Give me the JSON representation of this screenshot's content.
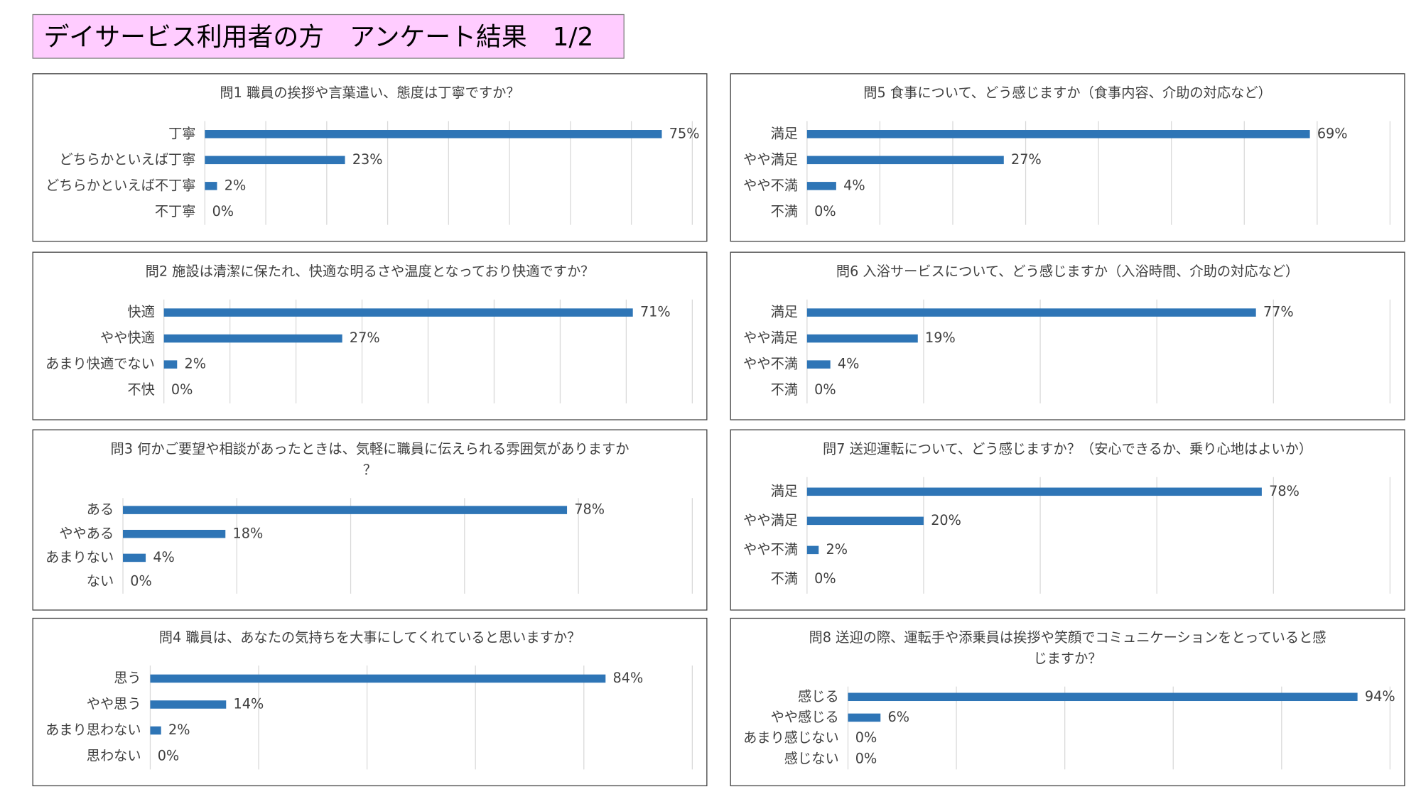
{
  "page_title": "デイサービス利用者の方　アンケート結果　1/2",
  "chart_data": [
    {
      "type": "bar",
      "orientation": "horizontal",
      "title": "問1 職員の挨拶や言葉遣い、態度は丁寧ですか？",
      "categories": [
        "丁寧",
        "どちらかといえば丁寧",
        "どちらかといえば不丁寧",
        "不丁寧"
      ],
      "values": [
        75,
        23,
        2,
        0
      ],
      "value_labels": [
        "75%",
        "23%",
        "2%",
        "0%"
      ],
      "color": "#2e75b6",
      "xlim": [
        0,
        80
      ],
      "xticks": [
        0,
        10,
        20,
        30,
        40,
        50,
        60,
        70,
        80
      ],
      "grid": true
    },
    {
      "type": "bar",
      "orientation": "horizontal",
      "title": "問2 施設は清潔に保たれ、快適な明るさや温度となっており快適ですか？",
      "categories": [
        "快適",
        "やや快適",
        "あまり快適でない",
        "不快"
      ],
      "values": [
        71,
        27,
        2,
        0
      ],
      "value_labels": [
        "71%",
        "27%",
        "2%",
        "0%"
      ],
      "color": "#2e75b6",
      "xlim": [
        0,
        80
      ],
      "xticks": [
        0,
        10,
        20,
        30,
        40,
        50,
        60,
        70,
        80
      ],
      "grid": true
    },
    {
      "type": "bar",
      "orientation": "horizontal",
      "title": "問3 何かご要望や相談があったときは、気軽に職員に伝えられる雰囲気がありますか？",
      "categories": [
        "ある",
        "ややある",
        "あまりない",
        "ない"
      ],
      "values": [
        78,
        18,
        4,
        0
      ],
      "value_labels": [
        "78%",
        "18%",
        "4%",
        "0%"
      ],
      "color": "#2e75b6",
      "xlim": [
        0,
        100
      ],
      "xticks": [
        0,
        20,
        40,
        60,
        80,
        100
      ],
      "grid": true
    },
    {
      "type": "bar",
      "orientation": "horizontal",
      "title": "問4 職員は、あなたの気持ちを大事にしてくれていると思いますか？",
      "categories": [
        "思う",
        "やや思う",
        "あまり思わない",
        "思わない"
      ],
      "values": [
        84,
        14,
        2,
        0
      ],
      "value_labels": [
        "84%",
        "14%",
        "2%",
        "0%"
      ],
      "color": "#2e75b6",
      "xlim": [
        0,
        100
      ],
      "xticks": [
        0,
        20,
        40,
        60,
        80,
        100
      ],
      "grid": true
    },
    {
      "type": "bar",
      "orientation": "horizontal",
      "title": "問5 食事について、どう感じますか（食事内容、介助の対応など）",
      "categories": [
        "満足",
        "やや満足",
        "やや不満",
        "不満"
      ],
      "values": [
        69,
        27,
        4,
        0
      ],
      "value_labels": [
        "69%",
        "27%",
        "4%",
        "0%"
      ],
      "color": "#2e75b6",
      "xlim": [
        0,
        80
      ],
      "xticks": [
        0,
        10,
        20,
        30,
        40,
        50,
        60,
        70,
        80
      ],
      "grid": true
    },
    {
      "type": "bar",
      "orientation": "horizontal",
      "title": "問6 入浴サービスについて、どう感じますか（入浴時間、介助の対応など）",
      "categories": [
        "満足",
        "やや満足",
        "やや不満",
        "不満"
      ],
      "values": [
        77,
        19,
        4,
        0
      ],
      "value_labels": [
        "77%",
        "19%",
        "4%",
        "0%"
      ],
      "color": "#2e75b6",
      "xlim": [
        0,
        100
      ],
      "xticks": [
        0,
        20,
        40,
        60,
        80,
        100
      ],
      "grid": true
    },
    {
      "type": "bar",
      "orientation": "horizontal",
      "title": "問7 送迎運転について、どう感じますか？（安心できるか、乗り心地はよいか）",
      "categories": [
        "満足",
        "やや満足",
        "やや不満",
        "不満"
      ],
      "values": [
        78,
        20,
        2,
        0
      ],
      "value_labels": [
        "78%",
        "20%",
        "2%",
        "0%"
      ],
      "color": "#2e75b6",
      "xlim": [
        0,
        100
      ],
      "xticks": [
        0,
        20,
        40,
        60,
        80,
        100
      ],
      "grid": true
    },
    {
      "type": "bar",
      "orientation": "horizontal",
      "title": "問8 送迎の際、運転手や添乗員は挨拶や笑顔でコミュニケーションをとっていると感じますか？",
      "categories": [
        "感じる",
        "やや感じる",
        "あまり感じない",
        "感じない"
      ],
      "values": [
        94,
        6,
        0,
        0
      ],
      "value_labels": [
        "94%",
        "6%",
        "0%",
        "0%"
      ],
      "color": "#2e75b6",
      "xlim": [
        0,
        100
      ],
      "xticks": [
        0,
        20,
        40,
        60,
        80,
        100
      ],
      "grid": true
    }
  ]
}
